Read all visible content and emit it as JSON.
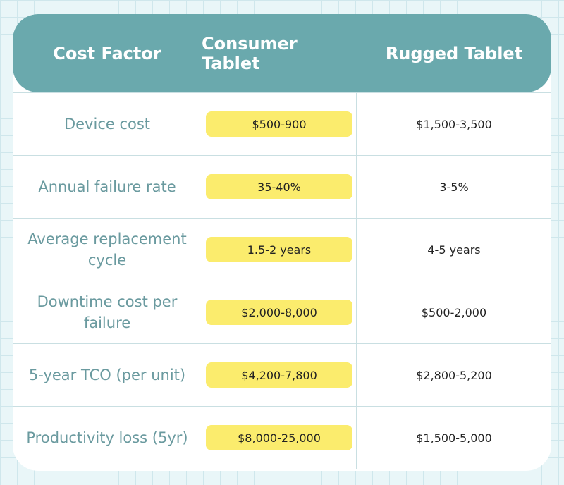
{
  "table": {
    "headers": [
      "Cost Factor",
      "Consumer Tablet",
      "Rugged Tablet"
    ],
    "rows": [
      {
        "factor": "Device cost",
        "consumer": "$500-900",
        "rugged": "$1,500-3,500"
      },
      {
        "factor": "Annual failure rate",
        "consumer": "35-40%",
        "rugged": "3-5%"
      },
      {
        "factor": "Average replacement cycle",
        "consumer": "1.5-2 years",
        "rugged": "4-5 years"
      },
      {
        "factor": "Downtime cost per failure",
        "consumer": "$2,000-8,000",
        "rugged": "$500-2,000"
      },
      {
        "factor": "5-year TCO (per unit)",
        "consumer": "$4,200-7,800",
        "rugged": "$2,800-5,200"
      },
      {
        "factor": "Productivity loss (5yr)",
        "consumer": "$8,000-25,000",
        "rugged": "$1,500-5,000"
      }
    ]
  },
  "colors": {
    "header_bg": "#6aa9ad",
    "highlight": "#fbec6d",
    "factor_text": "#6a9a9f",
    "background": "#e9f6f8"
  }
}
